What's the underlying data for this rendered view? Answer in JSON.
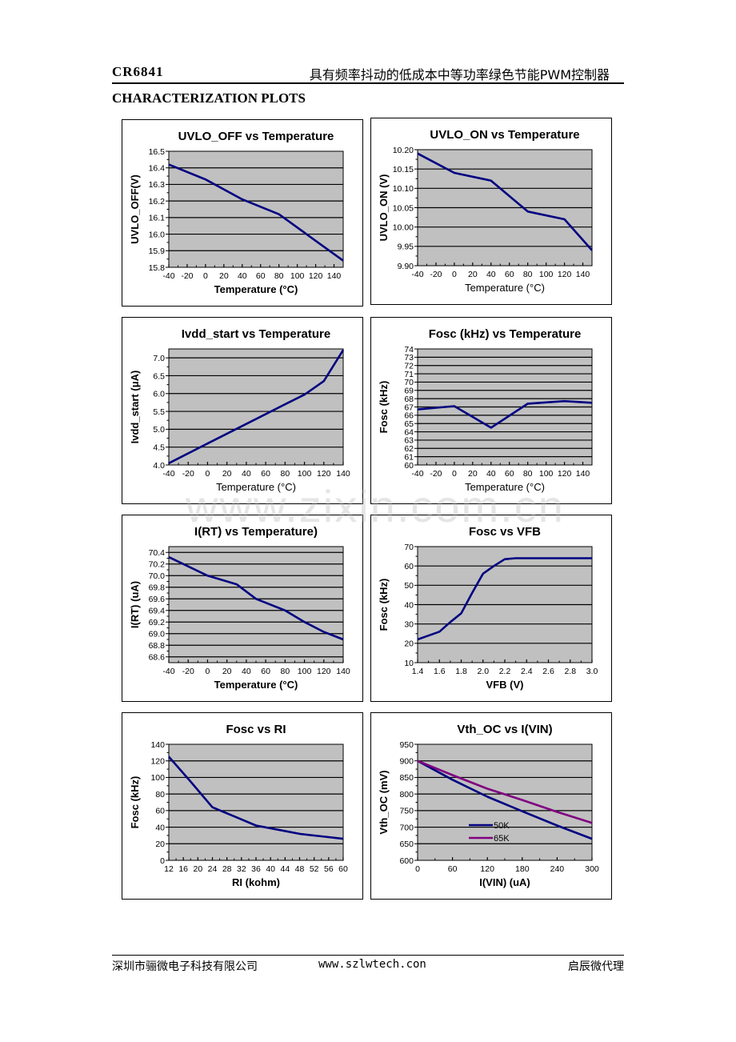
{
  "header": {
    "part_number": "CR6841",
    "description": "具有频率抖动的低成本中等功率绿色节能PWM控制器",
    "section_title": "CHARACTERIZATION PLOTS"
  },
  "footer": {
    "company": "深圳市骊微电子科技有限公司",
    "website": "www.szlwtech.con",
    "agent": "启辰微代理"
  },
  "watermark": "www.zixin.com.cn",
  "colors": {
    "plot_bg": "#c0c0c0",
    "line_blue": "#000080",
    "line_purple": "#800080",
    "grid": "#000000"
  },
  "chart_data": [
    {
      "id": "uvlo_off",
      "type": "line",
      "title": "UVLO_OFF vs Temperature",
      "xlabel": "Temperature (°C)",
      "ylabel": "UVLO_OFF(V)",
      "xlabel_bold": true,
      "xlim": [
        -40,
        150
      ],
      "ylim": [
        15.8,
        16.5
      ],
      "xticks": [
        -40,
        -20,
        0,
        20,
        40,
        60,
        80,
        100,
        120,
        140
      ],
      "xtick_labels": [
        "-40",
        "-20",
        "0",
        "20",
        "40",
        "60",
        "80",
        "100",
        "120",
        "140"
      ],
      "yticks": [
        15.8,
        15.9,
        16.0,
        16.1,
        16.2,
        16.3,
        16.4,
        16.5
      ],
      "ytick_labels": [
        "15.8",
        "15.9",
        "16.0",
        "16.1",
        "16.2",
        "16.3",
        "16.4",
        "16.5"
      ],
      "grid": true,
      "series": [
        {
          "name": "UVLO_OFF",
          "color": "#000080",
          "x": [
            -40,
            0,
            40,
            80,
            120,
            150
          ],
          "y": [
            16.42,
            16.33,
            16.21,
            16.12,
            15.96,
            15.84
          ]
        }
      ]
    },
    {
      "id": "uvlo_on",
      "type": "line",
      "title": "UVLO_ON vs Temperature",
      "xlabel": "Temperature (°C)",
      "ylabel": "UVLO_ON (V)",
      "xlabel_bold": false,
      "xlim": [
        -40,
        150
      ],
      "ylim": [
        9.9,
        10.2
      ],
      "xticks": [
        -40,
        -20,
        0,
        20,
        40,
        60,
        80,
        100,
        120,
        140
      ],
      "xtick_labels": [
        "-40",
        "-20",
        "0",
        "20",
        "40",
        "60",
        "80",
        "100",
        "120",
        "140"
      ],
      "yticks": [
        9.9,
        9.95,
        10.0,
        10.05,
        10.1,
        10.15,
        10.2
      ],
      "ytick_labels": [
        "9.90",
        "9.95",
        "10.00",
        "10.05",
        "10.10",
        "10.15",
        "10.20"
      ],
      "grid": true,
      "series": [
        {
          "name": "UVLO_ON",
          "color": "#000080",
          "x": [
            -40,
            0,
            40,
            80,
            120,
            150
          ],
          "y": [
            10.19,
            10.14,
            10.12,
            10.04,
            10.02,
            9.94
          ]
        }
      ]
    },
    {
      "id": "ivdd_start",
      "type": "line",
      "title": "Ivdd_start vs Temperature",
      "xlabel": "Temperature (°C)",
      "ylabel": "Ivdd_start (μA)",
      "xlabel_bold": false,
      "xlim": [
        -40,
        140
      ],
      "ylim": [
        4.0,
        7.25
      ],
      "xticks": [
        -40,
        -20,
        0,
        20,
        40,
        60,
        80,
        100,
        120,
        140
      ],
      "xtick_labels": [
        "-40",
        "-20",
        "0",
        "20",
        "40",
        "60",
        "80",
        "100",
        "120",
        "140"
      ],
      "yticks": [
        4.0,
        4.5,
        5.0,
        5.5,
        6.0,
        6.5,
        7.0
      ],
      "ytick_labels": [
        "4.0",
        "4.5",
        "5.0",
        "5.5",
        "6.0",
        "6.5",
        "7.0"
      ],
      "grid": true,
      "series": [
        {
          "name": "Ivdd_start",
          "color": "#000080",
          "x": [
            -40,
            0,
            40,
            80,
            100,
            120,
            140
          ],
          "y": [
            4.05,
            4.6,
            5.15,
            5.7,
            5.97,
            6.35,
            7.22
          ]
        }
      ]
    },
    {
      "id": "fosc_temp",
      "type": "line",
      "title": "Fosc (kHz)  vs Temperature",
      "xlabel": "Temperature (°C)",
      "ylabel": "Fosc (kHz)",
      "xlabel_bold": false,
      "xlim": [
        -40,
        150
      ],
      "ylim": [
        60,
        74
      ],
      "xticks": [
        -40,
        -20,
        0,
        20,
        40,
        60,
        80,
        100,
        120,
        140
      ],
      "xtick_labels": [
        "-40",
        "-20",
        "0",
        "20",
        "40",
        "60",
        "80",
        "100",
        "120",
        "140"
      ],
      "yticks": [
        60,
        61,
        62,
        63,
        64,
        65,
        66,
        67,
        68,
        69,
        70,
        71,
        72,
        73,
        74
      ],
      "ytick_labels": [
        "60",
        "61",
        "62",
        "63",
        "64",
        "65",
        "66",
        "67",
        "68",
        "69",
        "70",
        "71",
        "72",
        "73",
        "74"
      ],
      "grid": true,
      "series": [
        {
          "name": "Fosc",
          "color": "#000080",
          "x": [
            -40,
            0,
            40,
            80,
            120,
            150
          ],
          "y": [
            66.7,
            67.1,
            64.5,
            67.4,
            67.7,
            67.5
          ]
        }
      ]
    },
    {
      "id": "irt_temp",
      "type": "line",
      "title": "I(RT) vs Temperature)",
      "xlabel": "Temperature (°C)",
      "ylabel": "I(RT) (uA)",
      "xlabel_bold": true,
      "xlim": [
        -40,
        140
      ],
      "ylim": [
        68.5,
        70.5
      ],
      "xticks": [
        -40,
        -20,
        0,
        20,
        40,
        60,
        80,
        100,
        120,
        140
      ],
      "xtick_labels": [
        "-40",
        "-20",
        "0",
        "20",
        "40",
        "60",
        "80",
        "100",
        "120",
        "140"
      ],
      "yticks": [
        68.6,
        68.8,
        69.0,
        69.2,
        69.4,
        69.6,
        69.8,
        70.0,
        70.2,
        70.4
      ],
      "ytick_labels": [
        "68.6",
        "68.8",
        "69.0",
        "69.2",
        "69.4",
        "69.6",
        "69.8",
        "70.0",
        "70.2",
        "70.4"
      ],
      "grid": true,
      "series": [
        {
          "name": "I(RT)",
          "color": "#000080",
          "x": [
            -40,
            0,
            30,
            50,
            80,
            100,
            120,
            140
          ],
          "y": [
            70.32,
            70.0,
            69.85,
            69.6,
            69.4,
            69.2,
            69.03,
            68.9
          ]
        }
      ]
    },
    {
      "id": "fosc_vfb",
      "type": "line",
      "title": "Fosc vs  VFB",
      "xlabel": "VFB (V)",
      "ylabel": "Fosc (kHz)",
      "xlabel_bold": true,
      "xlim": [
        1.4,
        3.0
      ],
      "ylim": [
        10,
        70
      ],
      "xticks": [
        1.4,
        1.6,
        1.8,
        2.0,
        2.2,
        2.4,
        2.6,
        2.8,
        3.0
      ],
      "xtick_labels": [
        "1.4",
        "1.6",
        "1.8",
        "2.0",
        "2.2",
        "2.4",
        "2.6",
        "2.8",
        "3.0"
      ],
      "yticks": [
        10,
        20,
        30,
        40,
        50,
        60,
        70
      ],
      "ytick_labels": [
        "10",
        "20",
        "30",
        "40",
        "50",
        "60",
        "70"
      ],
      "grid": true,
      "series": [
        {
          "name": "Fosc",
          "color": "#000080",
          "x": [
            1.4,
            1.5,
            1.6,
            1.7,
            1.8,
            1.9,
            2.0,
            2.1,
            2.2,
            2.3,
            2.6,
            3.0
          ],
          "y": [
            22,
            24,
            26,
            31,
            35.5,
            46,
            56,
            60,
            63.5,
            64,
            64,
            64
          ]
        }
      ]
    },
    {
      "id": "fosc_ri",
      "type": "line",
      "title": "Fosc vs  RI",
      "xlabel": "RI (kohm)",
      "ylabel": "Fosc (kHz)",
      "xlabel_bold": true,
      "xlim": [
        12,
        60
      ],
      "ylim": [
        0,
        140
      ],
      "xticks": [
        12,
        16,
        20,
        24,
        28,
        32,
        36,
        40,
        44,
        48,
        52,
        56,
        60
      ],
      "xtick_labels": [
        "12",
        "16",
        "20",
        "24",
        "28",
        "32",
        "36",
        "40",
        "44",
        "48",
        "52",
        "56",
        "60"
      ],
      "yticks": [
        0,
        20,
        40,
        60,
        80,
        100,
        120,
        140
      ],
      "ytick_labels": [
        "0",
        "20",
        "40",
        "60",
        "80",
        "100",
        "120",
        "140"
      ],
      "grid": true,
      "series": [
        {
          "name": "Fosc",
          "color": "#000080",
          "x": [
            12,
            18,
            24,
            30,
            36,
            42,
            48,
            54,
            60
          ],
          "y": [
            125,
            95,
            64,
            53,
            42,
            37,
            32,
            29,
            26
          ]
        }
      ]
    },
    {
      "id": "vth_oc_ivin",
      "type": "line",
      "title": "Vth_OC vs I(VIN)",
      "xlabel": "I(VIN) (uA)",
      "ylabel": "Vth_OC (mV)",
      "xlabel_bold": true,
      "xlim": [
        0,
        300
      ],
      "ylim": [
        600,
        950
      ],
      "xticks": [
        0,
        60,
        120,
        180,
        240,
        300
      ],
      "xtick_labels": [
        "0",
        "60",
        "120",
        "180",
        "240",
        "300"
      ],
      "yticks": [
        600,
        650,
        700,
        750,
        800,
        850,
        900,
        950
      ],
      "ytick_labels": [
        "600",
        "650",
        "700",
        "750",
        "800",
        "850",
        "900",
        "950"
      ],
      "grid": true,
      "legend": "inside-bottom-left",
      "series": [
        {
          "name": "50K",
          "color": "#000080",
          "x": [
            0,
            60,
            120,
            180,
            240,
            300
          ],
          "y": [
            900,
            843,
            792,
            748,
            705,
            665
          ]
        },
        {
          "name": "65K",
          "color": "#800080",
          "x": [
            0,
            60,
            120,
            180,
            240,
            300
          ],
          "y": [
            900,
            857,
            816,
            782,
            746,
            713
          ]
        }
      ]
    }
  ]
}
